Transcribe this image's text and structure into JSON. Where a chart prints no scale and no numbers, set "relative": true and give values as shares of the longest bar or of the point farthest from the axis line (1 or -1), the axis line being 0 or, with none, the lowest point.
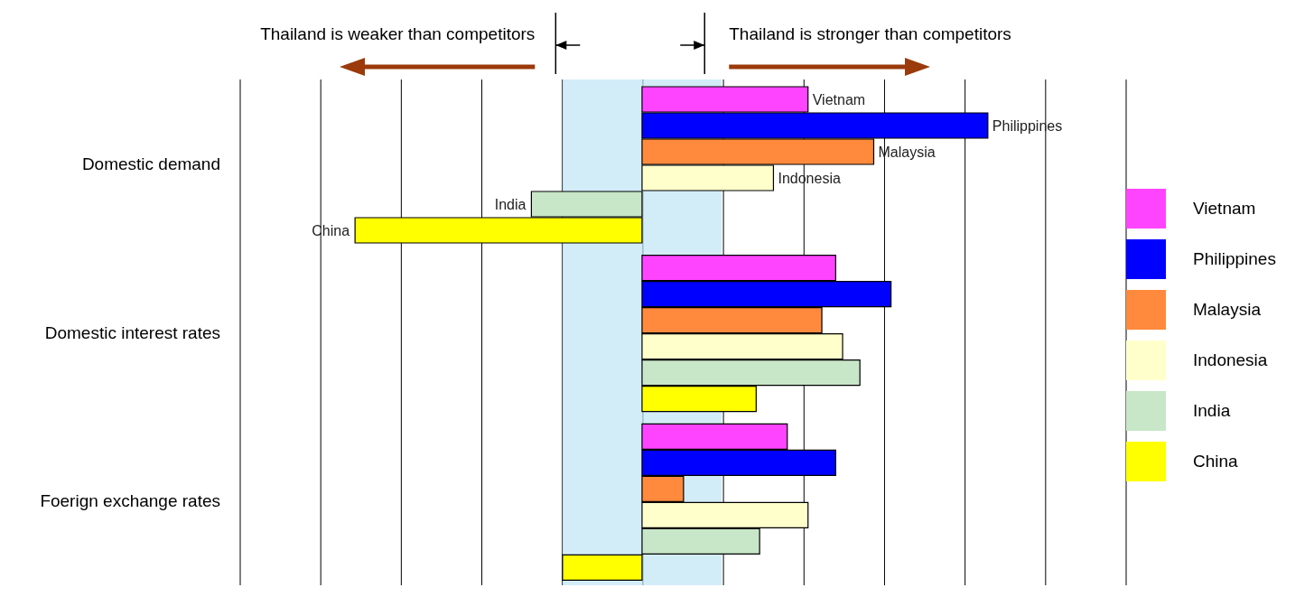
{
  "chart_data": {
    "type": "bar",
    "orientation": "horizontal",
    "relative": true,
    "categories": [
      "Domestic demand",
      "Domestic interest rates",
      "Foerign exchange rates"
    ],
    "series": [
      {
        "name": "Vietnam",
        "color": "#ff44ff",
        "values": [
          0.48,
          0.56,
          0.42
        ]
      },
      {
        "name": "Philippines",
        "color": "#0000ff",
        "values": [
          1,
          0.72,
          0.56
        ]
      },
      {
        "name": "Malaysia",
        "color": "#ff8a3d",
        "values": [
          0.67,
          0.52,
          0.12
        ]
      },
      {
        "name": "Indonesia",
        "color": "#ffffcc",
        "values": [
          0.38,
          0.58,
          0.48
        ]
      },
      {
        "name": "India",
        "color": "#c8e6c8",
        "values": [
          -0.32,
          0.63,
          0.34
        ]
      },
      {
        "name": "China",
        "color": "#ffff00",
        "values": [
          -0.83,
          0.33,
          -0.23
        ]
      }
    ],
    "bands": [
      {
        "axis": "x",
        "from": -0.23,
        "to": 0.23,
        "color": "#bfe6f5"
      }
    ],
    "annotations": [
      "Thailand is weaker than competitors",
      "Thailand is stronger than competitors",
      "Vietnam",
      "Philippines",
      "Malaysia",
      "Indonesia",
      "India",
      "China"
    ],
    "grid": "x",
    "legend": "right"
  }
}
